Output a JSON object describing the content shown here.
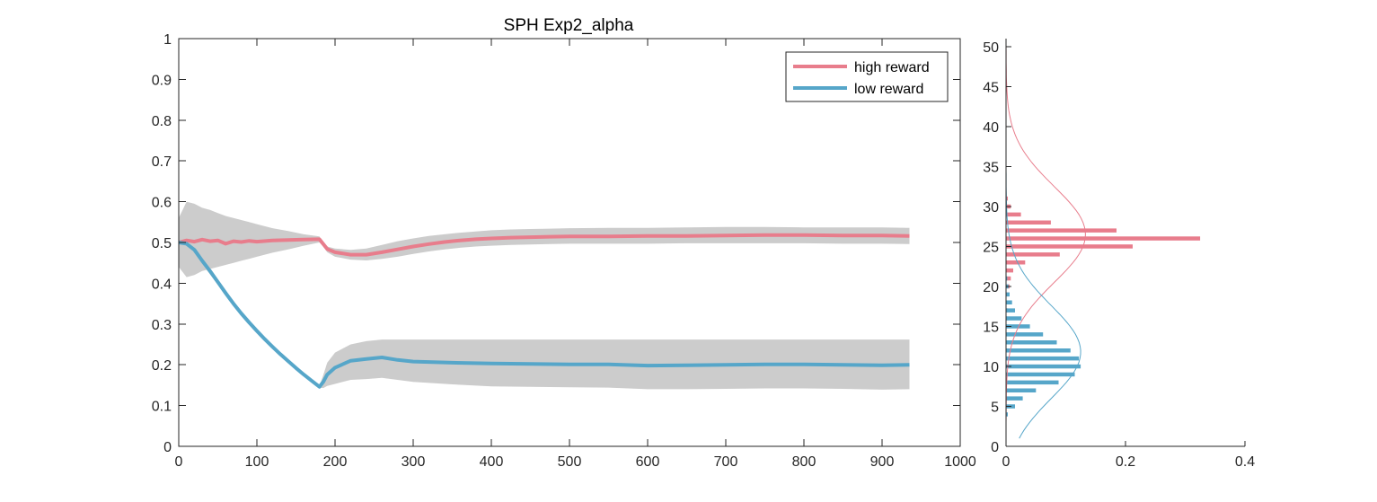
{
  "colors": {
    "high": "#E87D8C",
    "low": "#56A6C9",
    "band": "#CCCCCC",
    "axis": "#262626"
  },
  "chart_data": [
    {
      "type": "line",
      "title": "SPH  Exp2_alpha",
      "xlabel": "",
      "ylabel": "",
      "xlim": [
        0,
        1000
      ],
      "ylim": [
        0,
        1
      ],
      "xticks": [
        "0",
        "100",
        "200",
        "300",
        "400",
        "500",
        "600",
        "700",
        "800",
        "900",
        "1000"
      ],
      "yticks": [
        "0",
        "0.1",
        "0.2",
        "0.3",
        "0.4",
        "0.5",
        "0.6",
        "0.7",
        "0.8",
        "0.9",
        "1"
      ],
      "grid": false,
      "legend_position": "top-right",
      "series": [
        {
          "name": "high reward",
          "color_key": "high",
          "x": [
            0,
            10,
            20,
            30,
            40,
            50,
            60,
            70,
            80,
            90,
            100,
            120,
            140,
            160,
            180,
            185,
            190,
            200,
            220,
            240,
            260,
            280,
            300,
            320,
            340,
            360,
            380,
            400,
            425,
            450,
            475,
            500,
            550,
            600,
            650,
            700,
            750,
            800,
            850,
            900,
            935
          ],
          "y": [
            0.5,
            0.505,
            0.502,
            0.507,
            0.503,
            0.505,
            0.497,
            0.503,
            0.501,
            0.504,
            0.502,
            0.505,
            0.506,
            0.507,
            0.508,
            0.496,
            0.484,
            0.476,
            0.47,
            0.47,
            0.476,
            0.483,
            0.49,
            0.496,
            0.501,
            0.505,
            0.508,
            0.51,
            0.512,
            0.513,
            0.514,
            0.515,
            0.515,
            0.516,
            0.516,
            0.517,
            0.518,
            0.518,
            0.517,
            0.517,
            0.516
          ],
          "band_upper": [
            0.56,
            0.6,
            0.595,
            0.585,
            0.58,
            0.572,
            0.565,
            0.56,
            0.555,
            0.55,
            0.545,
            0.535,
            0.528,
            0.52,
            0.515,
            0.5,
            0.49,
            0.485,
            0.482,
            0.485,
            0.494,
            0.503,
            0.51,
            0.516,
            0.52,
            0.524,
            0.527,
            0.53,
            0.532,
            0.533,
            0.534,
            0.535,
            0.536,
            0.536,
            0.537,
            0.538,
            0.538,
            0.537,
            0.537,
            0.537,
            0.536
          ],
          "band_lower": [
            0.44,
            0.415,
            0.42,
            0.43,
            0.435,
            0.44,
            0.445,
            0.45,
            0.455,
            0.46,
            0.465,
            0.475,
            0.483,
            0.492,
            0.5,
            0.49,
            0.476,
            0.465,
            0.458,
            0.456,
            0.46,
            0.465,
            0.472,
            0.478,
            0.483,
            0.487,
            0.49,
            0.492,
            0.494,
            0.495,
            0.496,
            0.497,
            0.497,
            0.497,
            0.498,
            0.498,
            0.498,
            0.498,
            0.497,
            0.497,
            0.496
          ]
        },
        {
          "name": "low reward",
          "color_key": "low",
          "x": [
            0,
            10,
            20,
            30,
            40,
            50,
            60,
            70,
            80,
            90,
            100,
            110,
            120,
            130,
            140,
            150,
            160,
            170,
            180,
            185,
            190,
            200,
            220,
            240,
            260,
            280,
            300,
            350,
            400,
            450,
            500,
            550,
            600,
            650,
            700,
            750,
            800,
            850,
            900,
            935
          ],
          "y": [
            0.5,
            0.497,
            0.482,
            0.455,
            0.43,
            0.403,
            0.376,
            0.35,
            0.326,
            0.304,
            0.283,
            0.263,
            0.244,
            0.226,
            0.209,
            0.192,
            0.176,
            0.161,
            0.146,
            0.158,
            0.176,
            0.193,
            0.21,
            0.214,
            0.218,
            0.212,
            0.208,
            0.205,
            0.203,
            0.202,
            0.201,
            0.201,
            0.198,
            0.199,
            0.2,
            0.201,
            0.201,
            0.2,
            0.199,
            0.2
          ],
          "band_upper": [
            0.51,
            0.503,
            0.49,
            0.464,
            0.438,
            0.41,
            0.383,
            0.356,
            0.331,
            0.309,
            0.288,
            0.268,
            0.248,
            0.229,
            0.212,
            0.195,
            0.178,
            0.163,
            0.148,
            0.175,
            0.205,
            0.23,
            0.25,
            0.258,
            0.262,
            0.262,
            0.262,
            0.262,
            0.262,
            0.262,
            0.262,
            0.262,
            0.262,
            0.262,
            0.262,
            0.262,
            0.262,
            0.262,
            0.262,
            0.262
          ],
          "band_lower": [
            0.49,
            0.491,
            0.474,
            0.446,
            0.422,
            0.396,
            0.369,
            0.344,
            0.321,
            0.299,
            0.278,
            0.258,
            0.24,
            0.223,
            0.206,
            0.189,
            0.174,
            0.159,
            0.144,
            0.143,
            0.148,
            0.153,
            0.163,
            0.165,
            0.168,
            0.163,
            0.158,
            0.152,
            0.147,
            0.146,
            0.145,
            0.144,
            0.14,
            0.14,
            0.141,
            0.142,
            0.142,
            0.141,
            0.139,
            0.14
          ]
        }
      ]
    },
    {
      "type": "bar",
      "orientation": "horizontal",
      "title": "",
      "xlabel": "",
      "ylabel": "",
      "xlim": [
        0,
        0.4
      ],
      "ylim": [
        0,
        51
      ],
      "xticks": [
        "0",
        "0.2",
        "0.4"
      ],
      "yticks": [
        "0",
        "5",
        "10",
        "15",
        "20",
        "25",
        "30",
        "35",
        "40",
        "45",
        "50"
      ],
      "grid": false,
      "series": [
        {
          "name": "high reward",
          "color_key": "high",
          "bins": [
            16,
            17,
            18,
            19,
            20,
            21,
            22,
            23,
            24,
            25,
            26,
            27,
            28,
            29,
            30,
            31
          ],
          "values": [
            0.002,
            0.003,
            0.004,
            0.005,
            0.006,
            0.008,
            0.012,
            0.032,
            0.09,
            0.212,
            0.325,
            0.185,
            0.075,
            0.025,
            0.008,
            0.003
          ],
          "fit_mean": 26.5,
          "fit_sd": 6.0,
          "fit_peak": 0.133,
          "fit_range": [
            1,
            50
          ]
        },
        {
          "name": "low reward",
          "color_key": "low",
          "bins": [
            4,
            5,
            6,
            7,
            8,
            9,
            10,
            11,
            12,
            13,
            14,
            15,
            16,
            17,
            18,
            19,
            20,
            21
          ],
          "values": [
            0.003,
            0.015,
            0.028,
            0.05,
            0.088,
            0.115,
            0.125,
            0.122,
            0.108,
            0.085,
            0.062,
            0.04,
            0.026,
            0.015,
            0.01,
            0.006,
            0.004,
            0.002
          ],
          "fit_mean": 11.8,
          "fit_sd": 5.8,
          "fit_peak": 0.125,
          "fit_range": [
            1,
            50
          ]
        }
      ]
    }
  ]
}
